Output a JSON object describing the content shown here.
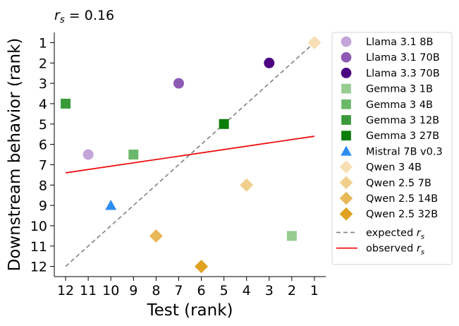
{
  "chart_data": {
    "type": "scatter",
    "title": "r_s = 0.16",
    "title_parts": {
      "var": "r",
      "sub": "s",
      "rest": " = 0.16"
    },
    "xlabel": "Test (rank)",
    "ylabel": "Downstream behavior (rank)",
    "xlim": [
      12.5,
      0.5
    ],
    "ylim": [
      12.5,
      0.5
    ],
    "x_inverted": true,
    "y_inverted": true,
    "xticks": [
      12,
      11,
      10,
      9,
      8,
      7,
      6,
      5,
      4,
      3,
      2,
      1
    ],
    "yticks": [
      1,
      2,
      3,
      4,
      5,
      6,
      7,
      8,
      9,
      10,
      11,
      12
    ],
    "grid": false,
    "legend_position": "outside-right",
    "series": [
      {
        "name": "Llama 3.1 8B",
        "marker": "circle",
        "color": "#c3a5da",
        "x": 11,
        "y": 6.5
      },
      {
        "name": "Llama 3.1 70B",
        "marker": "circle",
        "color": "#8e5bb4",
        "x": 7,
        "y": 3
      },
      {
        "name": "Llama 3.3 70B",
        "marker": "circle",
        "color": "#4b0082",
        "x": 3,
        "y": 2
      },
      {
        "name": "Gemma 3 1B",
        "marker": "square",
        "color": "#98cc91",
        "x": 2,
        "y": 10.5
      },
      {
        "name": "Gemma 3 4B",
        "marker": "square",
        "color": "#6bb86b",
        "x": 9,
        "y": 6.5
      },
      {
        "name": "Gemma 3 12B",
        "marker": "square",
        "color": "#3a9a3a",
        "x": 12,
        "y": 4
      },
      {
        "name": "Gemma 3 27B",
        "marker": "square",
        "color": "#0a7d0a",
        "x": 5,
        "y": 5
      },
      {
        "name": "Mistral 7B v0.3",
        "marker": "triangle",
        "color": "#2b8df2",
        "x": 10,
        "y": 9
      },
      {
        "name": "Qwen 3 4B",
        "marker": "diamond",
        "color": "#f7dfb4",
        "x": 1,
        "y": 1
      },
      {
        "name": "Qwen 2.5 7B",
        "marker": "diamond",
        "color": "#f0cf8e",
        "x": 4,
        "y": 8
      },
      {
        "name": "Qwen 2.5 14B",
        "marker": "diamond",
        "color": "#e8b85a",
        "x": 8,
        "y": 10.5
      },
      {
        "name": "Qwen 2.5 32B",
        "marker": "diamond",
        "color": "#e0a020",
        "x": 6,
        "y": 12
      }
    ],
    "lines": [
      {
        "name": "expected",
        "style": "dashed",
        "color": "#808080",
        "x": [
          12,
          1
        ],
        "y": [
          12,
          1
        ]
      },
      {
        "name": "observed",
        "style": "solid",
        "color": "#ee1111",
        "x": [
          12,
          1
        ],
        "y": [
          7.4,
          5.6
        ]
      }
    ],
    "line_legend": [
      {
        "key": "expected",
        "prefix": "expected ",
        "var": "r",
        "sub": "s"
      },
      {
        "key": "observed",
        "prefix": "observed ",
        "var": "r",
        "sub": "s"
      }
    ]
  }
}
